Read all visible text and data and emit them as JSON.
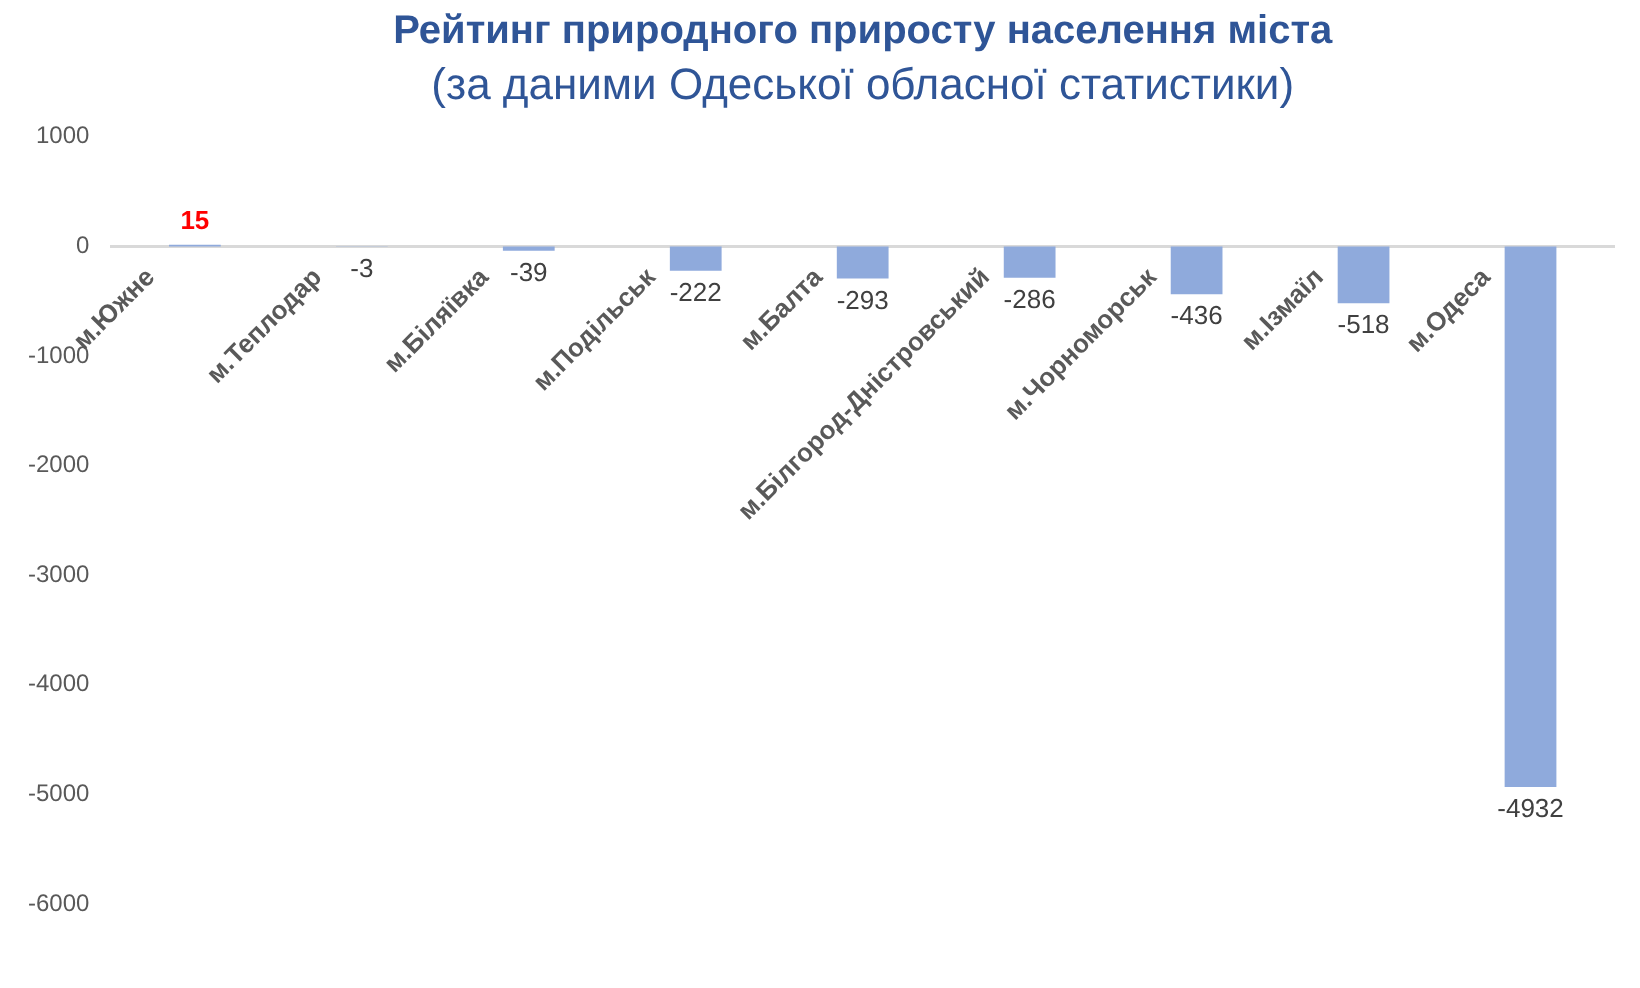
{
  "chart_data": {
    "type": "bar",
    "title": "Рейтинг природного приросту населення міста",
    "subtitle": "(за даними Одеської обласної статистики)",
    "categories": [
      "м.Южне",
      "м.Теплодар",
      "м.Біляївка",
      "м.Подільськ",
      "м.Балта",
      "м.Білгород-Дністровський",
      "м.Чорноморськ",
      "м.Ізмаїл",
      "м.Одеса"
    ],
    "values": [
      15,
      -3,
      -39,
      -222,
      -293,
      -286,
      -436,
      -518,
      -4932
    ],
    "color": "#8faadc",
    "ylim": [
      -6000,
      1000
    ],
    "yticks": [
      -6000,
      -5000,
      -4000,
      -3000,
      -2000,
      -1000,
      0,
      1000
    ],
    "grid": false,
    "legend": false,
    "data_labels": true
  }
}
